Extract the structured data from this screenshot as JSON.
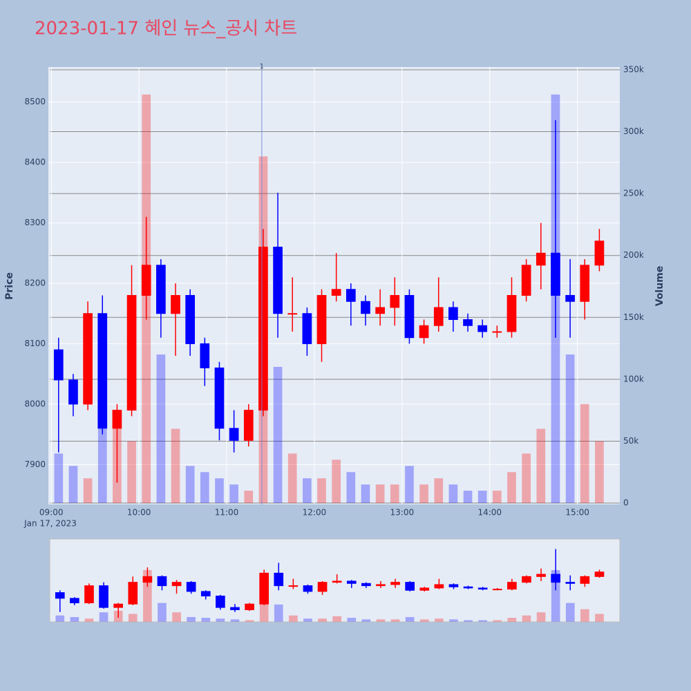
{
  "chart_data": {
    "type": "candlestick",
    "title": "2023-01-17 혜인 뉴스_공시 차트",
    "yaxis_title": "Price",
    "y2axis_title": "Volume",
    "x": [
      "2023-01-17 09:05",
      "2023-01-17 09:15",
      "2023-01-17 09:25",
      "2023-01-17 09:35",
      "2023-01-17 09:45",
      "2023-01-17 09:55",
      "2023-01-17 10:05",
      "2023-01-17 10:15",
      "2023-01-17 10:25",
      "2023-01-17 10:35",
      "2023-01-17 10:45",
      "2023-01-17 10:55",
      "2023-01-17 11:05",
      "2023-01-17 11:15",
      "2023-01-17 11:25",
      "2023-01-17 11:35",
      "2023-01-17 11:45",
      "2023-01-17 11:55",
      "2023-01-17 12:05",
      "2023-01-17 12:15",
      "2023-01-17 12:25",
      "2023-01-17 12:35",
      "2023-01-17 12:45",
      "2023-01-17 12:55",
      "2023-01-17 13:05",
      "2023-01-17 13:15",
      "2023-01-17 13:25",
      "2023-01-17 13:35",
      "2023-01-17 13:45",
      "2023-01-17 13:55",
      "2023-01-17 14:05",
      "2023-01-17 14:15",
      "2023-01-17 14:25",
      "2023-01-17 14:35",
      "2023-01-17 14:45",
      "2023-01-17 14:55",
      "2023-01-17 15:05",
      "2023-01-17 15:15"
    ],
    "open": [
      8090,
      8040,
      8000,
      8150,
      7960,
      7990,
      8180,
      8230,
      8150,
      8180,
      8100,
      8060,
      7960,
      7940,
      7990,
      8260,
      8150,
      8150,
      8100,
      8180,
      8190,
      8170,
      8150,
      8160,
      8180,
      8110,
      8130,
      8160,
      8140,
      8130,
      8120,
      8120,
      8180,
      8230,
      8250,
      8180,
      8170,
      8230
    ],
    "high": [
      8110,
      8050,
      8170,
      8180,
      8000,
      8230,
      8310,
      8240,
      8200,
      8190,
      8110,
      8070,
      7990,
      8000,
      8290,
      8350,
      8210,
      8160,
      8190,
      8250,
      8200,
      8180,
      8190,
      8210,
      8190,
      8140,
      8210,
      8170,
      8150,
      8140,
      8130,
      8210,
      8240,
      8300,
      8470,
      8240,
      8240,
      8290
    ],
    "low": [
      7920,
      7980,
      7990,
      7950,
      7870,
      7980,
      8140,
      8110,
      8080,
      8080,
      8030,
      7940,
      7920,
      7930,
      7980,
      8110,
      8120,
      8080,
      8070,
      8170,
      8130,
      8130,
      8130,
      8130,
      8100,
      8100,
      8120,
      8120,
      8120,
      8110,
      8110,
      8110,
      8170,
      8190,
      8110,
      8110,
      8140,
      8220
    ],
    "close": [
      8040,
      8000,
      8150,
      7960,
      7990,
      8180,
      8230,
      8150,
      8180,
      8100,
      8060,
      7960,
      7940,
      7990,
      8260,
      8150,
      8150,
      8100,
      8180,
      8190,
      8170,
      8150,
      8160,
      8180,
      8110,
      8130,
      8160,
      8140,
      8130,
      8120,
      8120,
      8180,
      8230,
      8250,
      8180,
      8170,
      8230,
      8270
    ],
    "volume": [
      40000,
      30000,
      20000,
      60000,
      70000,
      50000,
      330000,
      120000,
      60000,
      30000,
      25000,
      20000,
      15000,
      10000,
      280000,
      110000,
      40000,
      20000,
      20000,
      35000,
      25000,
      15000,
      15000,
      15000,
      30000,
      15000,
      20000,
      15000,
      10000,
      10000,
      10000,
      25000,
      40000,
      60000,
      330000,
      120000,
      80000,
      50000
    ],
    "increasing_color": "#ff0000",
    "decreasing_color": "#0000ff",
    "xlim": [
      "2023-01-17 08:58",
      "2023-01-17 15:29"
    ],
    "xticks": [
      {
        "value": "2023-01-17 09:00",
        "label": "09:00"
      },
      {
        "value": "2023-01-17 10:00",
        "label": "10:00"
      },
      {
        "value": "2023-01-17 11:00",
        "label": "11:00"
      },
      {
        "value": "2023-01-17 12:00",
        "label": "12:00"
      },
      {
        "value": "2023-01-17 13:00",
        "label": "13:00"
      },
      {
        "value": "2023-01-17 14:00",
        "label": "14:00"
      },
      {
        "value": "2023-01-17 15:00",
        "label": "15:00"
      }
    ],
    "x_date_label": "Jan 17, 2023",
    "ylim": [
      7834,
      8558
    ],
    "yticks": [
      7900,
      8000,
      8100,
      8200,
      8300,
      8400,
      8500
    ],
    "y2lim": [
      -1100,
      352200
    ],
    "y2ticks": [
      0,
      {
        "value": 50000,
        "label": "50k"
      },
      {
        "value": 100000,
        "label": "100k"
      },
      {
        "value": 150000,
        "label": "150k"
      },
      {
        "value": 200000,
        "label": "200k"
      },
      {
        "value": 250000,
        "label": "250k"
      },
      {
        "value": 300000,
        "label": "300k"
      },
      {
        "value": 350000,
        "label": "350k"
      }
    ],
    "grid": true,
    "shapes": [
      {
        "x": "2023-01-17 11:24",
        "label": "1"
      }
    ],
    "rangeslider": true
  }
}
